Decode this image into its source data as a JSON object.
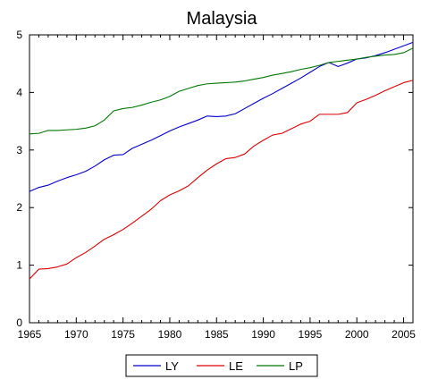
{
  "chart_data": {
    "type": "line",
    "title": "Malaysia",
    "xlabel": "",
    "ylabel": "",
    "xlim": [
      1965,
      2006
    ],
    "ylim": [
      0,
      5
    ],
    "x_ticks": [
      "1965",
      "1970",
      "1975",
      "1980",
      "1985",
      "1990",
      "1995",
      "2000",
      "2005"
    ],
    "y_ticks": [
      "0",
      "1",
      "2",
      "3",
      "4",
      "5"
    ],
    "grid": false,
    "legend_position": "bottom-center",
    "x": [
      1965,
      1966,
      1967,
      1968,
      1969,
      1970,
      1971,
      1972,
      1973,
      1974,
      1975,
      1976,
      1977,
      1978,
      1979,
      1980,
      1981,
      1982,
      1983,
      1984,
      1985,
      1986,
      1987,
      1988,
      1989,
      1990,
      1991,
      1992,
      1993,
      1994,
      1995,
      1996,
      1997,
      1998,
      1999,
      2000,
      2001,
      2002,
      2003,
      2004,
      2005,
      2006
    ],
    "series": [
      {
        "name": "LY",
        "color": "#0000cc",
        "values": [
          2.28,
          2.35,
          2.39,
          2.46,
          2.52,
          2.57,
          2.63,
          2.72,
          2.83,
          2.91,
          2.92,
          3.03,
          3.1,
          3.17,
          3.25,
          3.33,
          3.4,
          3.46,
          3.52,
          3.59,
          3.58,
          3.59,
          3.63,
          3.72,
          3.81,
          3.9,
          3.98,
          4.07,
          4.16,
          4.25,
          4.35,
          4.45,
          4.52,
          4.45,
          4.51,
          4.58,
          4.6,
          4.64,
          4.69,
          4.75,
          4.81,
          4.87
        ]
      },
      {
        "name": "LE",
        "color": "#dd0000",
        "values": [
          0.76,
          0.93,
          0.94,
          0.97,
          1.02,
          1.13,
          1.22,
          1.33,
          1.45,
          1.53,
          1.62,
          1.73,
          1.85,
          1.97,
          2.12,
          2.22,
          2.29,
          2.38,
          2.52,
          2.65,
          2.76,
          2.85,
          2.87,
          2.93,
          3.07,
          3.17,
          3.26,
          3.29,
          3.37,
          3.45,
          3.5,
          3.62,
          3.62,
          3.62,
          3.65,
          3.82,
          3.88,
          3.95,
          4.03,
          4.1,
          4.17,
          4.21
        ]
      },
      {
        "name": "LP",
        "color": "#007700",
        "values": [
          3.28,
          3.29,
          3.34,
          3.34,
          3.35,
          3.36,
          3.38,
          3.42,
          3.52,
          3.68,
          3.72,
          3.74,
          3.78,
          3.83,
          3.87,
          3.93,
          4.02,
          4.07,
          4.12,
          4.15,
          4.16,
          4.17,
          4.18,
          4.2,
          4.23,
          4.26,
          4.3,
          4.33,
          4.36,
          4.4,
          4.43,
          4.47,
          4.52,
          4.54,
          4.56,
          4.58,
          4.61,
          4.63,
          4.65,
          4.66,
          4.69,
          4.77
        ]
      }
    ]
  }
}
